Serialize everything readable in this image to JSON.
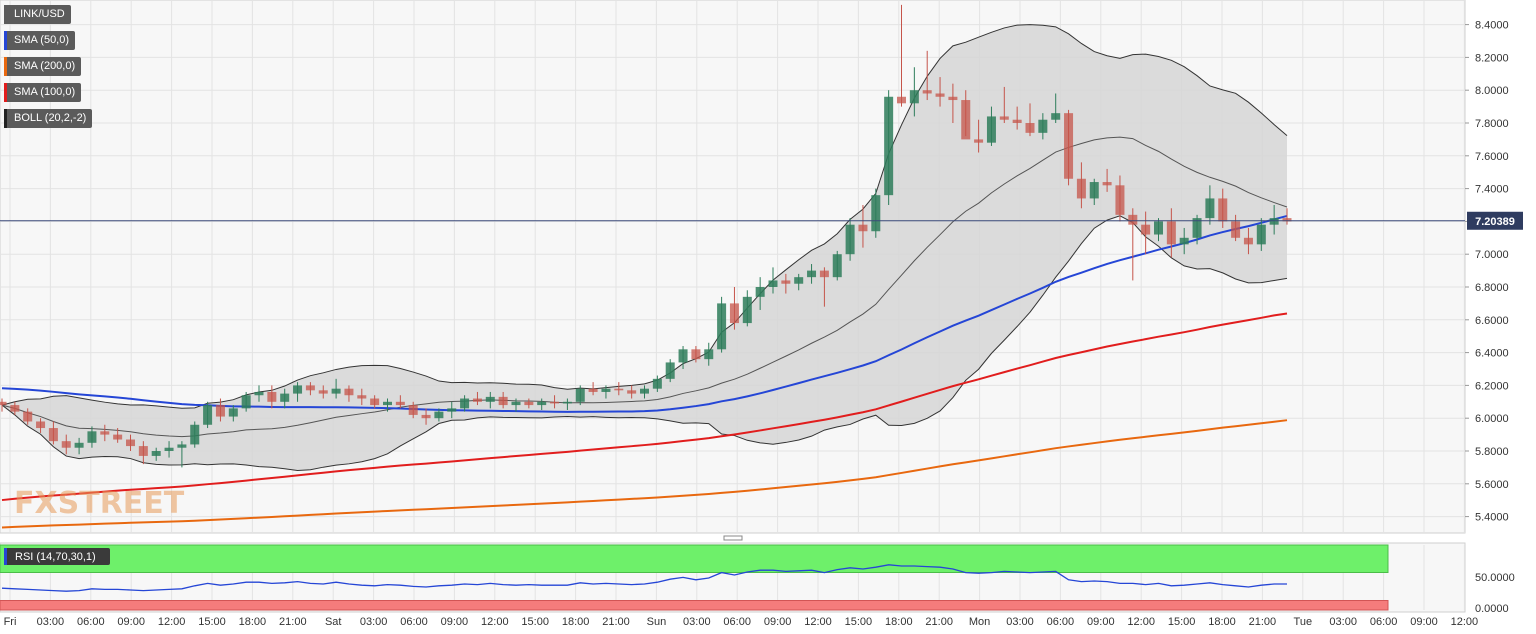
{
  "chart_data": [
    {
      "type": "candlestick",
      "symbol": "LINK/USD",
      "ylim": [
        5.3,
        8.55
      ],
      "y_ticks": [
        "8.4000",
        "8.2000",
        "8.0000",
        "7.8000",
        "7.6000",
        "7.4000",
        "7.2000",
        "7.0000",
        "6.8000",
        "6.6000",
        "6.4000",
        "6.2000",
        "6.0000",
        "5.8000",
        "5.6000",
        "5.4000"
      ],
      "x_ticks": [
        "Fri",
        "03:00",
        "06:00",
        "09:00",
        "12:00",
        "15:00",
        "18:00",
        "21:00",
        "Sat",
        "03:00",
        "06:00",
        "09:00",
        "12:00",
        "15:00",
        "18:00",
        "21:00",
        "Sun",
        "03:00",
        "06:00",
        "09:00",
        "12:00",
        "15:00",
        "18:00",
        "21:00",
        "Mon",
        "03:00",
        "06:00",
        "09:00",
        "12:00",
        "15:00",
        "18:00",
        "21:00",
        "Tue",
        "03:00",
        "06:00",
        "09:00",
        "12:00"
      ],
      "current_price": "7.20389",
      "legend": [
        {
          "label": "LINK/USD",
          "color": "#5b5b5b"
        },
        {
          "label": "SMA (50,0)",
          "color": "#2546d6"
        },
        {
          "label": "SMA (200,0)",
          "color": "#e8680f"
        },
        {
          "label": "SMA (100,0)",
          "color": "#e11d1d"
        },
        {
          "label": "BOLL (20,2,-2)",
          "color": "#222222"
        }
      ],
      "candles": [
        [
          6.1,
          6.12,
          6.04,
          6.08
        ],
        [
          6.08,
          6.1,
          6.02,
          6.04
        ],
        [
          6.04,
          6.06,
          5.96,
          5.98
        ],
        [
          5.98,
          6.0,
          5.91,
          5.94
        ],
        [
          5.94,
          5.98,
          5.84,
          5.86
        ],
        [
          5.86,
          5.9,
          5.78,
          5.82
        ],
        [
          5.82,
          5.88,
          5.78,
          5.85
        ],
        [
          5.85,
          5.95,
          5.82,
          5.92
        ],
        [
          5.92,
          5.96,
          5.86,
          5.9
        ],
        [
          5.9,
          5.94,
          5.85,
          5.87
        ],
        [
          5.87,
          5.9,
          5.8,
          5.83
        ],
        [
          5.83,
          5.86,
          5.72,
          5.77
        ],
        [
          5.77,
          5.82,
          5.74,
          5.8
        ],
        [
          5.8,
          5.86,
          5.76,
          5.82
        ],
        [
          5.82,
          5.86,
          5.7,
          5.84
        ],
        [
          5.84,
          5.98,
          5.82,
          5.96
        ],
        [
          5.96,
          6.1,
          5.94,
          6.08
        ],
        [
          6.08,
          6.12,
          5.98,
          6.01
        ],
        [
          6.01,
          6.08,
          5.98,
          6.06
        ],
        [
          6.06,
          6.16,
          6.04,
          6.14
        ],
        [
          6.14,
          6.2,
          6.1,
          6.16
        ],
        [
          6.16,
          6.2,
          6.06,
          6.1
        ],
        [
          6.1,
          6.18,
          6.06,
          6.15
        ],
        [
          6.15,
          6.22,
          6.1,
          6.2
        ],
        [
          6.2,
          6.22,
          6.14,
          6.17
        ],
        [
          6.17,
          6.2,
          6.12,
          6.15
        ],
        [
          6.15,
          6.24,
          6.12,
          6.18
        ],
        [
          6.18,
          6.2,
          6.1,
          6.14
        ],
        [
          6.14,
          6.18,
          6.08,
          6.12
        ],
        [
          6.12,
          6.14,
          6.06,
          6.08
        ],
        [
          6.08,
          6.12,
          6.04,
          6.1
        ],
        [
          6.1,
          6.14,
          6.06,
          6.08
        ],
        [
          6.08,
          6.1,
          6.0,
          6.02
        ],
        [
          6.02,
          6.06,
          5.96,
          6.0
        ],
        [
          6.0,
          6.06,
          5.98,
          6.04
        ],
        [
          6.04,
          6.1,
          6.0,
          6.06
        ],
        [
          6.06,
          6.14,
          6.04,
          6.12
        ],
        [
          6.12,
          6.16,
          6.08,
          6.1
        ],
        [
          6.1,
          6.16,
          6.06,
          6.13
        ],
        [
          6.13,
          6.16,
          6.06,
          6.08
        ],
        [
          6.08,
          6.12,
          6.04,
          6.1
        ],
        [
          6.1,
          6.12,
          6.06,
          6.08
        ],
        [
          6.08,
          6.12,
          6.05,
          6.1
        ],
        [
          6.1,
          6.14,
          6.06,
          6.09
        ],
        [
          6.09,
          6.12,
          6.05,
          6.1
        ],
        [
          6.1,
          6.2,
          6.08,
          6.18
        ],
        [
          6.18,
          6.22,
          6.14,
          6.16
        ],
        [
          6.16,
          6.2,
          6.12,
          6.18
        ],
        [
          6.18,
          6.22,
          6.14,
          6.17
        ],
        [
          6.17,
          6.2,
          6.12,
          6.15
        ],
        [
          6.15,
          6.2,
          6.12,
          6.18
        ],
        [
          6.18,
          6.26,
          6.16,
          6.24
        ],
        [
          6.24,
          6.36,
          6.22,
          6.34
        ],
        [
          6.34,
          6.44,
          6.3,
          6.42
        ],
        [
          6.42,
          6.44,
          6.34,
          6.36
        ],
        [
          6.36,
          6.46,
          6.32,
          6.42
        ],
        [
          6.42,
          6.74,
          6.4,
          6.7
        ],
        [
          6.7,
          6.8,
          6.54,
          6.58
        ],
        [
          6.58,
          6.78,
          6.56,
          6.74
        ],
        [
          6.74,
          6.86,
          6.66,
          6.8
        ],
        [
          6.8,
          6.92,
          6.76,
          6.84
        ],
        [
          6.84,
          6.88,
          6.76,
          6.82
        ],
        [
          6.82,
          6.88,
          6.78,
          6.86
        ],
        [
          6.86,
          6.94,
          6.82,
          6.9
        ],
        [
          6.9,
          6.92,
          6.68,
          6.86
        ],
        [
          6.86,
          7.02,
          6.84,
          7.0
        ],
        [
          7.0,
          7.22,
          6.96,
          7.18
        ],
        [
          7.18,
          7.3,
          7.04,
          7.14
        ],
        [
          7.14,
          7.4,
          7.1,
          7.36
        ],
        [
          7.36,
          8.0,
          7.3,
          7.96
        ],
        [
          7.96,
          8.52,
          7.9,
          7.92
        ],
        [
          7.92,
          8.14,
          7.84,
          8.0
        ],
        [
          8.0,
          8.24,
          7.94,
          7.98
        ],
        [
          7.98,
          8.08,
          7.9,
          7.96
        ],
        [
          7.96,
          8.04,
          7.8,
          7.94
        ],
        [
          7.94,
          8.0,
          7.72,
          7.7
        ],
        [
          7.7,
          7.82,
          7.62,
          7.68
        ],
        [
          7.68,
          7.9,
          7.66,
          7.84
        ],
        [
          7.84,
          8.02,
          7.8,
          7.82
        ],
        [
          7.82,
          7.9,
          7.76,
          7.8
        ],
        [
          7.8,
          7.92,
          7.72,
          7.74
        ],
        [
          7.74,
          7.86,
          7.7,
          7.82
        ],
        [
          7.82,
          7.98,
          7.8,
          7.86
        ],
        [
          7.86,
          7.88,
          7.42,
          7.46
        ],
        [
          7.46,
          7.56,
          7.28,
          7.34
        ],
        [
          7.34,
          7.46,
          7.3,
          7.44
        ],
        [
          7.44,
          7.52,
          7.38,
          7.42
        ],
        [
          7.42,
          7.48,
          7.2,
          7.24
        ],
        [
          7.24,
          7.28,
          6.84,
          7.18
        ],
        [
          7.18,
          7.26,
          7.0,
          7.12
        ],
        [
          7.12,
          7.22,
          7.08,
          7.2
        ],
        [
          7.2,
          7.28,
          6.98,
          7.06
        ],
        [
          7.06,
          7.16,
          7.0,
          7.1
        ],
        [
          7.1,
          7.24,
          7.06,
          7.22
        ],
        [
          7.22,
          7.42,
          7.18,
          7.34
        ],
        [
          7.34,
          7.4,
          7.16,
          7.2
        ],
        [
          7.2,
          7.24,
          7.08,
          7.1
        ],
        [
          7.1,
          7.16,
          7.0,
          7.06
        ],
        [
          7.06,
          7.22,
          7.02,
          7.18
        ],
        [
          7.18,
          7.3,
          7.12,
          7.22
        ],
        [
          7.22,
          7.28,
          7.18,
          7.2
        ]
      ]
    },
    {
      "type": "line",
      "name": "RSI (14,70,30,1)",
      "ylim": [
        0,
        100
      ],
      "y_ticks": [
        "50.0000",
        "0.0000"
      ],
      "overbought": 70,
      "oversold": 30,
      "values": [
        48,
        47,
        46,
        45,
        44,
        43,
        44,
        47,
        46,
        46,
        45,
        44,
        45,
        46,
        47,
        52,
        56,
        53,
        55,
        58,
        58,
        56,
        57,
        59,
        56,
        55,
        58,
        55,
        53,
        52,
        54,
        53,
        51,
        50,
        52,
        53,
        55,
        54,
        56,
        54,
        53,
        54,
        53,
        53,
        53,
        57,
        55,
        56,
        55,
        54,
        55,
        58,
        63,
        66,
        62,
        65,
        74,
        70,
        75,
        78,
        78,
        76,
        77,
        78,
        74,
        79,
        82,
        80,
        83,
        87,
        85,
        85,
        84,
        83,
        80,
        74,
        73,
        74,
        76,
        75,
        74,
        75,
        76,
        62,
        59,
        60,
        59,
        56,
        56,
        54,
        56,
        52,
        53,
        55,
        57,
        54,
        52,
        50,
        53,
        55,
        55
      ]
    }
  ]
}
